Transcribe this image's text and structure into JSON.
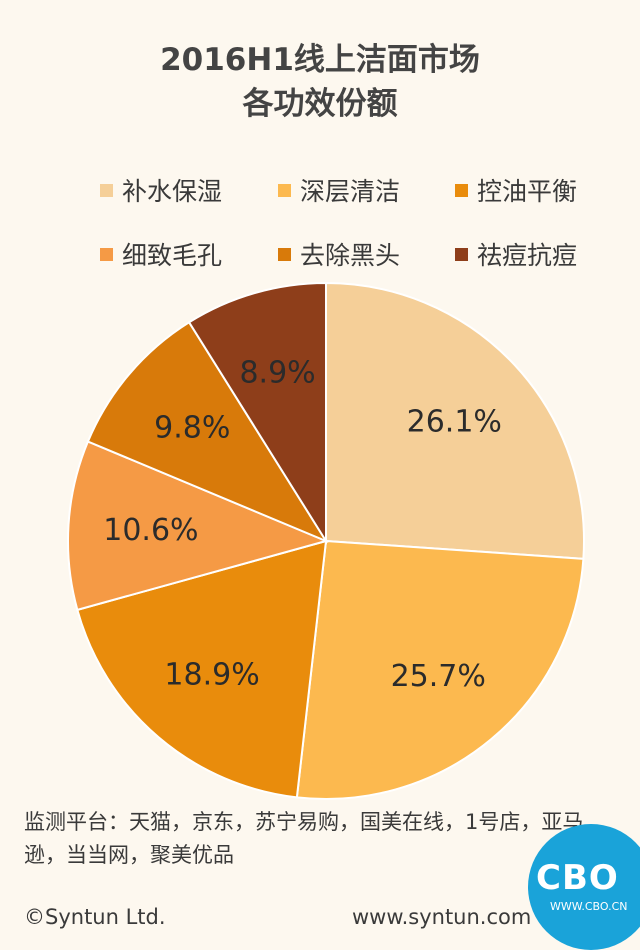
{
  "chart_data": {
    "type": "pie",
    "title_line1": "2016H1线上洁面市场",
    "title_line2": "各功效份额",
    "series": [
      {
        "name": "补水保湿",
        "value": 26.1,
        "label": "26.1%",
        "color": "#f5cf98"
      },
      {
        "name": "深层清洁",
        "value": 25.7,
        "label": "25.7%",
        "color": "#fcb94f"
      },
      {
        "name": "控油平衡",
        "value": 18.9,
        "label": "18.9%",
        "color": "#e98c0c"
      },
      {
        "name": "细致毛孔",
        "value": 10.6,
        "label": "10.6%",
        "color": "#f59a45"
      },
      {
        "name": "去除黑头",
        "value": 9.8,
        "label": "9.8%",
        "color": "#d87a0a"
      },
      {
        "name": "祛痘抗痘",
        "value": 8.9,
        "label": "8.9%",
        "color": "#8e3e1a"
      }
    ],
    "legend_position": "top"
  },
  "footer": {
    "platforms": "监测平台：天猫，京东，苏宁易购，国美在线，1号店，亚马逊，当当网，聚美优品",
    "copyright": "©Syntun Ltd.",
    "website": "www.syntun.com"
  },
  "logo": {
    "text": "CBO",
    "url": "WWW.CBO.CN",
    "color": "#1aa3d9"
  }
}
